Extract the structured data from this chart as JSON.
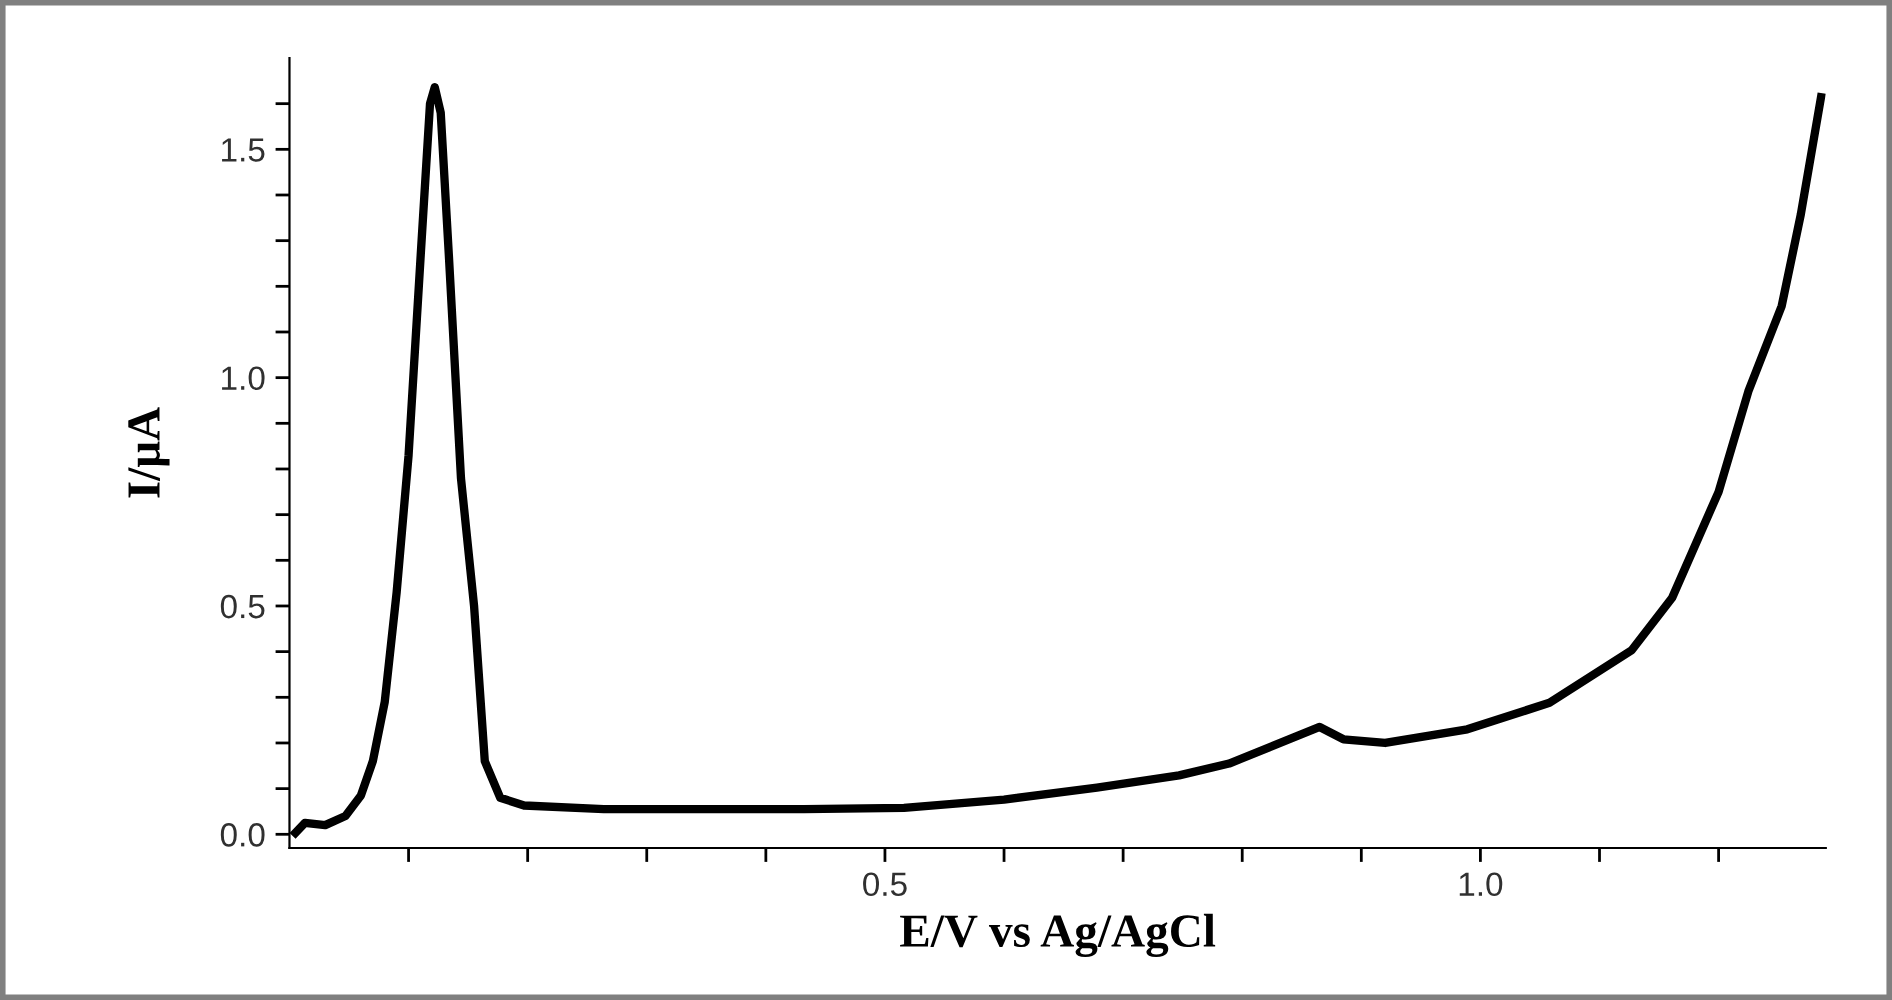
{
  "chart_data": {
    "type": "line",
    "xlabel": "E/V vs Ag/AgCl",
    "ylabel": "I/μA",
    "color": "#000000",
    "grid": false,
    "marker": "none",
    "line_style": "solid",
    "x": [
      0.005,
      0.013,
      0.03,
      0.047,
      0.06,
      0.07,
      0.08,
      0.09,
      0.1,
      0.11,
      0.118,
      0.122,
      0.127,
      0.134,
      0.144,
      0.155,
      0.164,
      0.177,
      0.197,
      0.264,
      0.348,
      0.432,
      0.516,
      0.6,
      0.678,
      0.747,
      0.789,
      0.865,
      0.885,
      0.92,
      0.989,
      1.058,
      1.127,
      1.161,
      1.2,
      1.225,
      1.253,
      1.269,
      1.286
    ],
    "values": [
      0.003,
      0.025,
      0.02,
      0.04,
      0.085,
      0.16,
      0.29,
      0.53,
      0.83,
      1.26,
      1.6,
      1.636,
      1.58,
      1.26,
      0.78,
      0.5,
      0.16,
      0.08,
      0.063,
      0.055,
      0.055,
      0.055,
      0.058,
      0.076,
      0.102,
      0.129,
      0.155,
      0.235,
      0.208,
      0.2,
      0.23,
      0.288,
      0.403,
      0.518,
      0.75,
      0.97,
      1.157,
      1.357,
      1.614
    ],
    "xlim": [
      0.0,
      1.29
    ],
    "ylim": [
      -0.03,
      1.7
    ],
    "xticks": [
      {
        "value": 0.1,
        "label": null
      },
      {
        "value": 0.2,
        "label": null
      },
      {
        "value": 0.3,
        "label": null
      },
      {
        "value": 0.4,
        "label": null
      },
      0.5,
      {
        "value": 0.6,
        "label": null
      },
      {
        "value": 0.7,
        "label": null
      },
      {
        "value": 0.8,
        "label": null
      },
      {
        "value": 0.9,
        "label": null
      },
      {
        "value": 1.0,
        "label": "1.0"
      },
      {
        "value": 1.1,
        "label": null
      },
      {
        "value": 1.2,
        "label": null
      }
    ],
    "yticks": [
      {
        "value": 0.0,
        "label": "0.0"
      },
      {
        "value": 0.1,
        "label": null
      },
      {
        "value": 0.2,
        "label": null
      },
      {
        "value": 0.3,
        "label": null
      },
      {
        "value": 0.4,
        "label": null
      },
      0.5,
      {
        "value": 0.6,
        "label": null
      },
      {
        "value": 0.7,
        "label": null
      },
      {
        "value": 0.8,
        "label": null
      },
      {
        "value": 0.9,
        "label": null
      },
      {
        "value": 1.0,
        "label": "1.0"
      },
      {
        "value": 1.1,
        "label": null
      },
      {
        "value": 1.2,
        "label": null
      },
      {
        "value": 1.3,
        "label": null
      },
      {
        "value": 1.4,
        "label": null
      },
      1.5,
      {
        "value": 1.6,
        "label": null
      }
    ]
  }
}
